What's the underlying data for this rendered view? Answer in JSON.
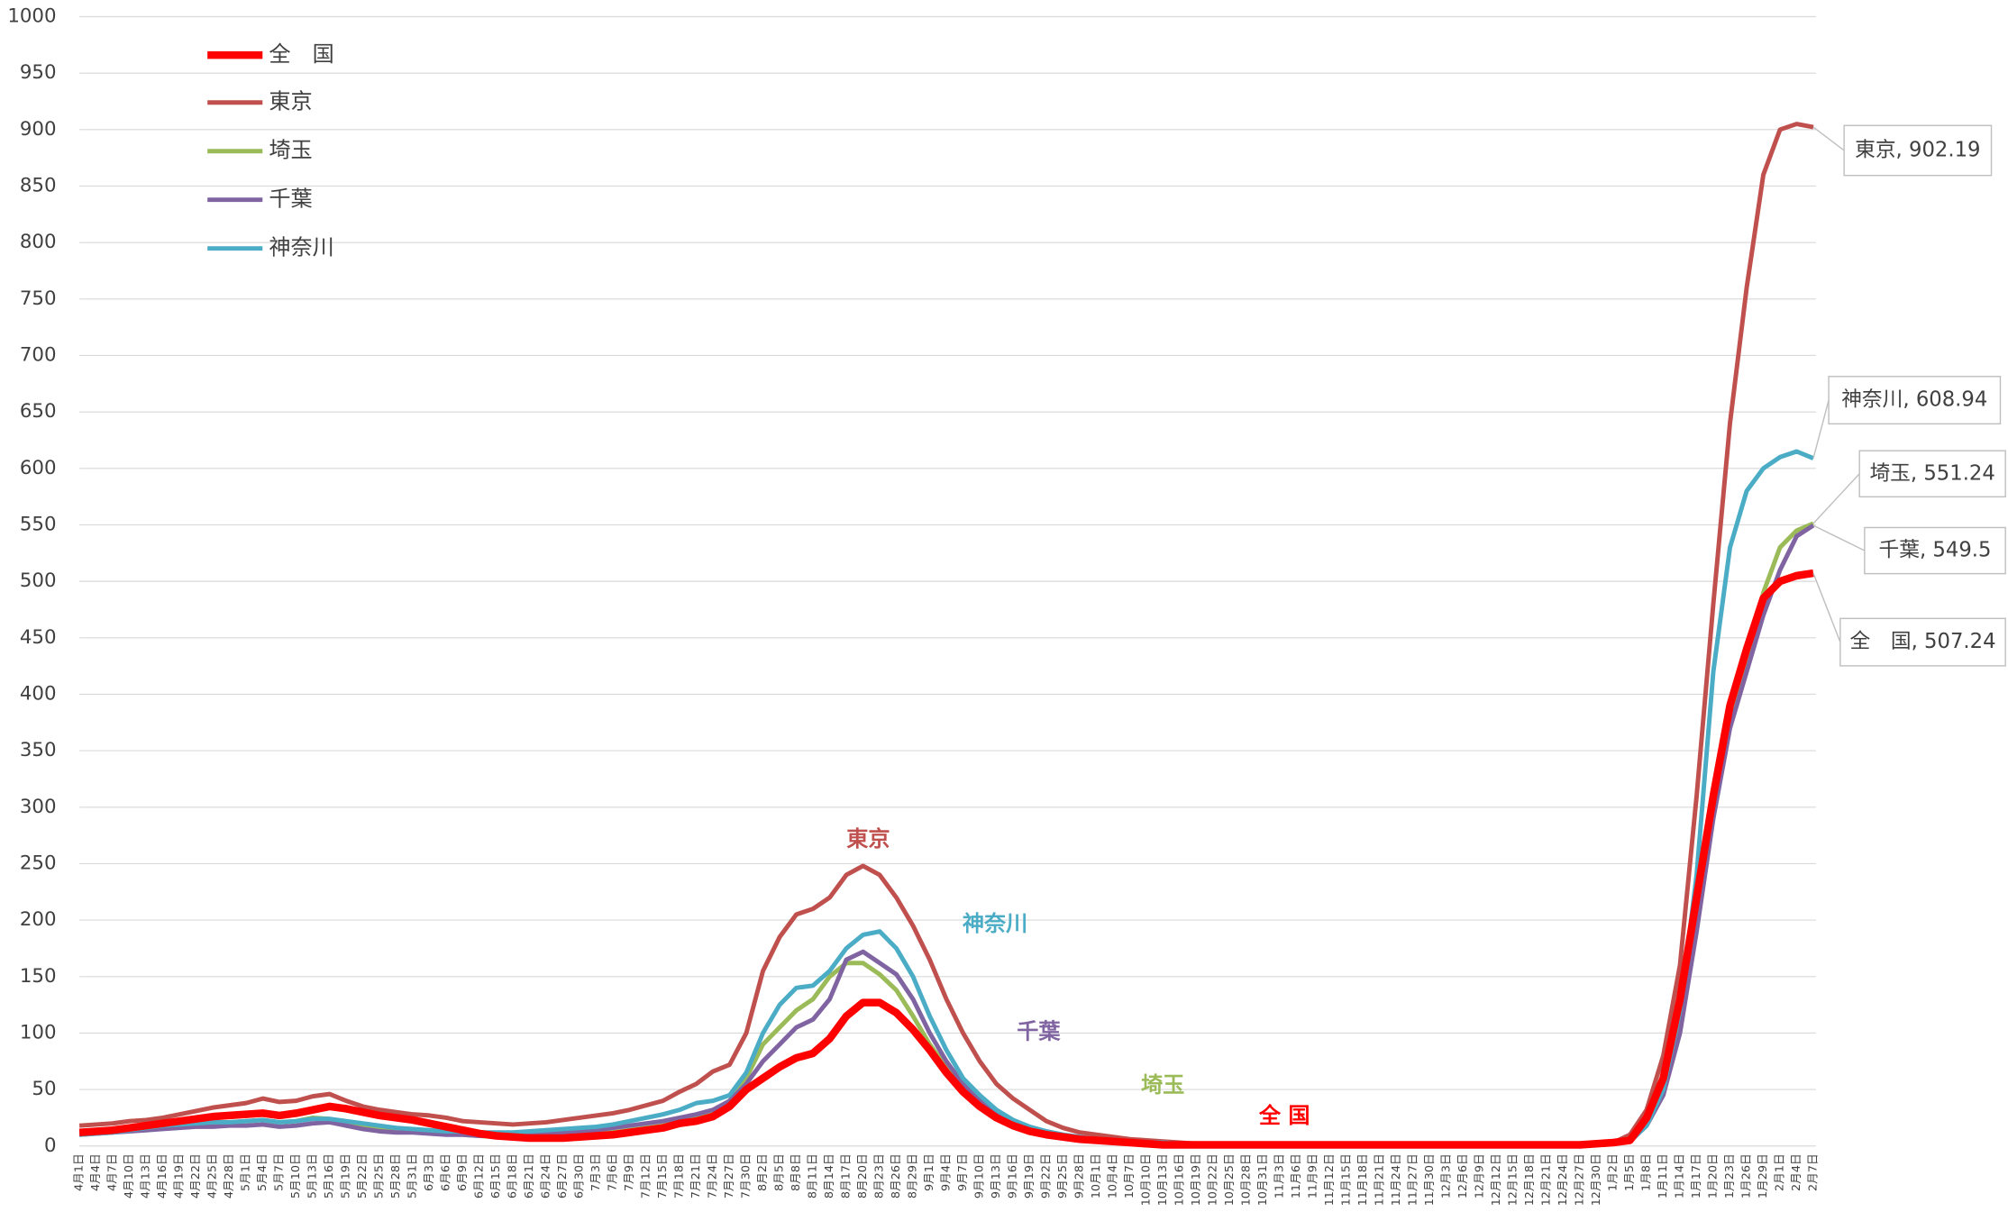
{
  "chart_data": {
    "type": "line",
    "categories": [
      "4月1日",
      "4月4日",
      "4月7日",
      "4月10日",
      "4月13日",
      "4月16日",
      "4月19日",
      "4月22日",
      "4月25日",
      "4月28日",
      "5月1日",
      "5月4日",
      "5月7日",
      "5月10日",
      "5月13日",
      "5月16日",
      "5月19日",
      "5月22日",
      "5月25日",
      "5月28日",
      "5月31日",
      "6月3日",
      "6月6日",
      "6月9日",
      "6月12日",
      "6月15日",
      "6月18日",
      "6月21日",
      "6月24日",
      "6月27日",
      "6月30日",
      "7月3日",
      "7月6日",
      "7月9日",
      "7月12日",
      "7月15日",
      "7月18日",
      "7月21日",
      "7月24日",
      "7月27日",
      "7月30日",
      "8月2日",
      "8月5日",
      "8月8日",
      "8月11日",
      "8月14日",
      "8月17日",
      "8月20日",
      "8月23日",
      "8月26日",
      "8月29日",
      "9月1日",
      "9月4日",
      "9月7日",
      "9月10日",
      "9月13日",
      "9月16日",
      "9月19日",
      "9月22日",
      "9月25日",
      "9月28日",
      "10月1日",
      "10月4日",
      "10月7日",
      "10月10日",
      "10月13日",
      "10月16日",
      "10月19日",
      "10月22日",
      "10月25日",
      "10月28日",
      "10月31日",
      "11月3日",
      "11月6日",
      "11月9日",
      "11月12日",
      "11月15日",
      "11月18日",
      "11月21日",
      "11月24日",
      "11月27日",
      "11月30日",
      "12月3日",
      "12月6日",
      "12月9日",
      "12月12日",
      "12月15日",
      "12月18日",
      "12月21日",
      "12月24日",
      "12月27日",
      "12月30日",
      "1月2日",
      "1月5日",
      "1月8日",
      "1月11日",
      "1月14日",
      "1月17日",
      "1月20日",
      "1月23日",
      "1月26日",
      "1月29日",
      "2月1日",
      "2月4日",
      "2月7日"
    ],
    "series": [
      {
        "name": "全　国",
        "color": "#ff0000",
        "values": [
          12,
          13,
          14,
          16,
          18,
          20,
          22,
          24,
          26,
          27,
          28,
          29,
          27,
          29,
          32,
          35,
          33,
          30,
          27,
          25,
          23,
          20,
          17,
          14,
          11,
          9,
          8,
          7,
          7,
          7,
          8,
          9,
          10,
          12,
          14,
          16,
          20,
          22,
          26,
          35,
          50,
          60,
          70,
          78,
          82,
          95,
          115,
          127,
          127,
          118,
          103,
          85,
          65,
          48,
          35,
          25,
          18,
          13,
          10,
          8,
          6,
          5,
          4,
          3,
          2,
          1,
          1,
          1,
          1,
          1,
          1,
          1,
          1,
          1,
          1,
          1,
          1,
          1,
          1,
          1,
          1,
          1,
          1,
          1,
          1,
          1,
          1,
          1,
          1,
          1,
          1,
          2,
          3,
          5,
          25,
          60,
          130,
          220,
          310,
          390,
          440,
          485,
          500,
          505,
          507.24
        ]
      },
      {
        "name": "東京",
        "color": "#c0504d",
        "values": [
          18,
          19,
          20,
          22,
          23,
          25,
          28,
          31,
          34,
          36,
          38,
          42,
          39,
          40,
          44,
          46,
          40,
          35,
          32,
          30,
          28,
          27,
          25,
          22,
          21,
          20,
          19,
          20,
          21,
          23,
          25,
          27,
          29,
          32,
          36,
          40,
          48,
          55,
          66,
          72,
          100,
          155,
          185,
          205,
          210,
          220,
          240,
          248,
          240,
          220,
          195,
          165,
          130,
          100,
          75,
          55,
          42,
          32,
          22,
          16,
          12,
          10,
          8,
          6,
          5,
          4,
          3,
          2,
          2,
          2,
          2,
          2,
          2,
          2,
          2,
          2,
          2,
          2,
          2,
          2,
          2,
          2,
          2,
          2,
          2,
          2,
          2,
          2,
          2,
          2,
          2,
          2,
          3,
          10,
          32,
          80,
          160,
          310,
          480,
          640,
          760,
          860,
          900,
          905,
          902.19
        ]
      },
      {
        "name": "埼玉",
        "color": "#9bbb59",
        "values": [
          12,
          13,
          14,
          15,
          16,
          18,
          19,
          20,
          20,
          21,
          22,
          23,
          21,
          22,
          25,
          24,
          20,
          18,
          16,
          15,
          14,
          13,
          12,
          10,
          9,
          8,
          7,
          7,
          8,
          9,
          10,
          11,
          12,
          14,
          16,
          18,
          22,
          25,
          30,
          40,
          60,
          90,
          105,
          120,
          130,
          150,
          162,
          162,
          152,
          138,
          115,
          90,
          70,
          52,
          38,
          28,
          20,
          15,
          11,
          8,
          6,
          5,
          4,
          3,
          3,
          2,
          2,
          2,
          2,
          2,
          2,
          2,
          2,
          2,
          2,
          2,
          2,
          2,
          2,
          2,
          2,
          2,
          2,
          2,
          2,
          2,
          2,
          2,
          2,
          2,
          2,
          2,
          2,
          4,
          20,
          50,
          110,
          200,
          300,
          380,
          430,
          490,
          530,
          545,
          551.24
        ]
      },
      {
        "name": "千葉",
        "color": "#8064a2",
        "values": [
          10,
          11,
          12,
          13,
          14,
          15,
          16,
          17,
          17,
          18,
          18,
          19,
          17,
          18,
          20,
          21,
          18,
          15,
          13,
          12,
          12,
          11,
          10,
          10,
          9,
          9,
          9,
          10,
          11,
          12,
          13,
          14,
          16,
          18,
          20,
          22,
          25,
          28,
          32,
          40,
          55,
          75,
          90,
          105,
          112,
          130,
          165,
          172,
          162,
          152,
          130,
          100,
          75,
          55,
          40,
          30,
          22,
          16,
          12,
          9,
          7,
          5,
          4,
          3,
          3,
          2,
          2,
          2,
          2,
          2,
          2,
          2,
          2,
          2,
          2,
          2,
          2,
          2,
          2,
          2,
          2,
          2,
          2,
          2,
          2,
          2,
          2,
          2,
          2,
          2,
          2,
          2,
          2,
          4,
          18,
          45,
          100,
          190,
          290,
          370,
          420,
          470,
          510,
          540,
          549.5
        ]
      },
      {
        "name": "神奈川",
        "color": "#4bacc6",
        "values": [
          10,
          11,
          12,
          14,
          16,
          18,
          19,
          20,
          21,
          21,
          22,
          23,
          21,
          22,
          24,
          24,
          22,
          20,
          18,
          16,
          15,
          14,
          13,
          13,
          12,
          12,
          12,
          13,
          14,
          15,
          16,
          17,
          19,
          22,
          25,
          28,
          32,
          38,
          40,
          45,
          65,
          100,
          125,
          140,
          142,
          155,
          175,
          187,
          190,
          175,
          150,
          115,
          85,
          60,
          45,
          32,
          23,
          17,
          13,
          10,
          8,
          6,
          5,
          4,
          3,
          3,
          2,
          2,
          2,
          2,
          2,
          2,
          2,
          2,
          2,
          2,
          2,
          2,
          2,
          2,
          2,
          2,
          2,
          2,
          2,
          2,
          2,
          2,
          2,
          2,
          2,
          2,
          2,
          4,
          18,
          50,
          120,
          240,
          420,
          530,
          580,
          600,
          610,
          615,
          608.94
        ]
      }
    ],
    "series_labels": [
      "全 国",
      "東京",
      "埼玉",
      "千葉",
      "神奈川"
    ],
    "end_labels": [
      "全　国, 507.24",
      "東京, 902.19",
      "埼玉, 551.24",
      "千葉, 549.5",
      "神奈川, 608.94"
    ],
    "ylim": [
      0,
      1000
    ],
    "yticks": [
      0,
      50,
      100,
      150,
      200,
      250,
      300,
      350,
      400,
      450,
      500,
      550,
      600,
      650,
      700,
      750,
      800,
      850,
      900,
      950,
      1000
    ],
    "grid": true,
    "legend": "upper left"
  }
}
